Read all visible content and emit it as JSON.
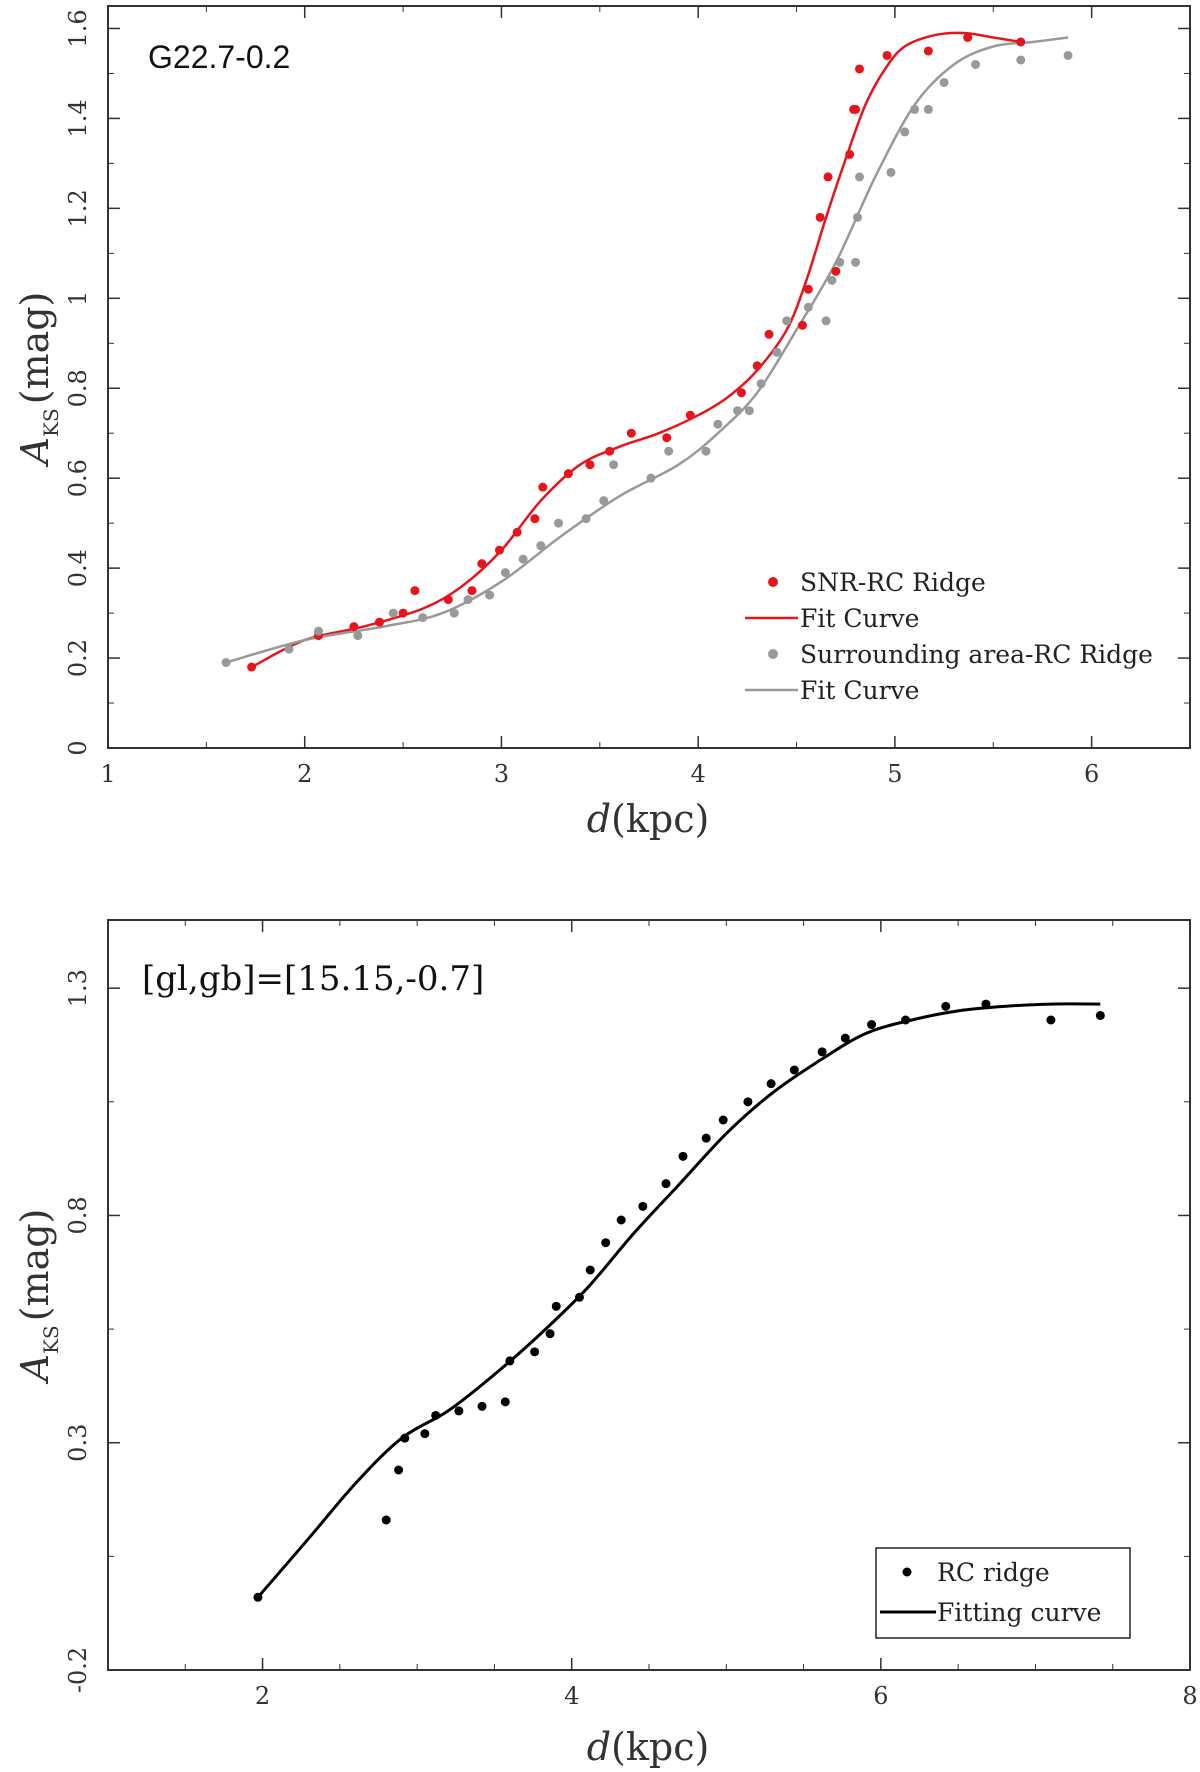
{
  "chart_data": [
    {
      "type": "scatter",
      "title": "G22.7-0.2",
      "xlabel": "d(kpc)",
      "ylabel": "A_KS (mag)",
      "ylabel_main": "A",
      "ylabel_sub": "KS",
      "ylabel_unit": "(mag)",
      "xlabel_var": "d",
      "xlabel_unit": "(kpc)",
      "xlim": [
        1,
        6.5
      ],
      "ylim": [
        0,
        1.65
      ],
      "xticks": [
        1,
        2,
        3,
        4,
        5,
        6
      ],
      "yticks": [
        0,
        0.2,
        0.4,
        0.6,
        0.8,
        1,
        1.2,
        1.4,
        1.6
      ],
      "xtick_labels": [
        "1",
        "2",
        "3",
        "4",
        "5",
        "6"
      ],
      "ytick_labels": [
        "0",
        "0.2",
        "0.4",
        "0.6",
        "0.8",
        "1",
        "1.2",
        "1.4",
        "1.6"
      ],
      "legend_position": "bottom-right",
      "series": [
        {
          "name": "SNR-RC Ridge",
          "kind": "points",
          "color": "#e8141c",
          "x": [
            1.73,
            2.07,
            2.25,
            2.38,
            2.5,
            2.56,
            2.73,
            2.85,
            2.9,
            2.99,
            3.08,
            3.17,
            3.21,
            3.34,
            3.45,
            3.55,
            3.66,
            3.84,
            3.96,
            4.22,
            4.3,
            4.36,
            4.53,
            4.56,
            4.62,
            4.66,
            4.7,
            4.77,
            4.79,
            4.8,
            4.82,
            4.96,
            5.17,
            5.37,
            5.64
          ],
          "y": [
            0.18,
            0.25,
            0.27,
            0.28,
            0.3,
            0.35,
            0.33,
            0.35,
            0.41,
            0.44,
            0.48,
            0.51,
            0.58,
            0.61,
            0.63,
            0.66,
            0.7,
            0.69,
            0.74,
            0.79,
            0.85,
            0.92,
            0.94,
            1.02,
            1.18,
            1.27,
            1.06,
            1.32,
            1.42,
            1.42,
            1.51,
            1.54,
            1.55,
            1.58,
            1.57
          ]
        },
        {
          "name": "Fit Curve",
          "kind": "line",
          "color": "#e8141c",
          "x": [
            1.73,
            2.0,
            2.3,
            2.6,
            2.8,
            3.0,
            3.2,
            3.4,
            3.6,
            3.8,
            4.0,
            4.15,
            4.3,
            4.45,
            4.55,
            4.65,
            4.75,
            4.85,
            4.95,
            5.05,
            5.2,
            5.35,
            5.5,
            5.64
          ],
          "y": [
            0.18,
            0.24,
            0.27,
            0.31,
            0.36,
            0.44,
            0.55,
            0.63,
            0.67,
            0.7,
            0.74,
            0.78,
            0.84,
            0.93,
            1.04,
            1.18,
            1.31,
            1.43,
            1.51,
            1.56,
            1.585,
            1.59,
            1.58,
            1.57
          ]
        },
        {
          "name": "Surrounding area-RC Ridge",
          "kind": "points",
          "color": "#999999",
          "x": [
            1.6,
            1.92,
            2.07,
            2.27,
            2.45,
            2.6,
            2.76,
            2.83,
            2.94,
            3.02,
            3.11,
            3.2,
            3.29,
            3.43,
            3.52,
            3.57,
            3.76,
            3.85,
            4.04,
            4.1,
            4.2,
            4.26,
            4.32,
            4.4,
            4.45,
            4.56,
            4.65,
            4.68,
            4.72,
            4.8,
            4.81,
            4.82,
            4.98,
            5.05,
            5.1,
            5.17,
            5.25,
            5.41,
            5.64,
            5.88
          ],
          "y": [
            0.19,
            0.22,
            0.26,
            0.25,
            0.3,
            0.29,
            0.3,
            0.33,
            0.34,
            0.39,
            0.42,
            0.45,
            0.5,
            0.51,
            0.55,
            0.63,
            0.6,
            0.66,
            0.66,
            0.72,
            0.75,
            0.75,
            0.81,
            0.88,
            0.95,
            0.98,
            0.95,
            1.04,
            1.08,
            1.08,
            1.18,
            1.27,
            1.28,
            1.37,
            1.42,
            1.42,
            1.48,
            1.52,
            1.53,
            1.54
          ]
        },
        {
          "name": "Fit Curve",
          "kind": "line",
          "color": "#999999",
          "x": [
            1.6,
            2.0,
            2.4,
            2.7,
            3.0,
            3.3,
            3.6,
            3.9,
            4.1,
            4.3,
            4.5,
            4.7,
            4.9,
            5.1,
            5.3,
            5.5,
            5.7,
            5.88
          ],
          "y": [
            0.19,
            0.24,
            0.27,
            0.3,
            0.37,
            0.47,
            0.56,
            0.63,
            0.7,
            0.79,
            0.93,
            1.08,
            1.27,
            1.43,
            1.52,
            1.56,
            1.57,
            1.58
          ]
        }
      ]
    },
    {
      "type": "scatter",
      "title": "[gl,gb]=[15.15,-0.7]",
      "xlabel": "d(kpc)",
      "ylabel": "A_KS (mag)",
      "ylabel_main": "A",
      "ylabel_sub": "KS",
      "ylabel_unit": "(mag)",
      "xlabel_var": "d",
      "xlabel_unit": "(kpc)",
      "xlim": [
        1,
        8
      ],
      "ylim": [
        -0.2,
        1.45
      ],
      "xticks": [
        2,
        4,
        6,
        8
      ],
      "yticks": [
        -0.2,
        0.3,
        0.8,
        1.3
      ],
      "xtick_labels": [
        "2",
        "4",
        "6",
        "8"
      ],
      "ytick_labels": [
        "-0.2",
        "0.3",
        "0.8",
        "1.3"
      ],
      "legend_position": "bottom-right",
      "series": [
        {
          "name": "RC ridge",
          "kind": "points",
          "color": "#000000",
          "x": [
            1.97,
            2.8,
            2.88,
            2.92,
            3.05,
            3.12,
            3.27,
            3.42,
            3.57,
            3.6,
            3.76,
            3.86,
            3.9,
            4.05,
            4.12,
            4.22,
            4.32,
            4.46,
            4.61,
            4.72,
            4.87,
            4.98,
            5.14,
            5.29,
            5.44,
            5.62,
            5.77,
            5.94,
            6.16,
            6.42,
            6.68,
            7.1,
            7.42
          ],
          "y": [
            -0.04,
            0.13,
            0.24,
            0.31,
            0.32,
            0.36,
            0.37,
            0.38,
            0.39,
            0.48,
            0.5,
            0.54,
            0.6,
            0.62,
            0.68,
            0.74,
            0.79,
            0.82,
            0.87,
            0.93,
            0.97,
            1.01,
            1.05,
            1.09,
            1.12,
            1.16,
            1.19,
            1.22,
            1.23,
            1.26,
            1.265,
            1.23,
            1.24
          ]
        },
        {
          "name": "Fitting curve",
          "kind": "line",
          "color": "#000000",
          "x": [
            1.97,
            2.3,
            2.6,
            2.9,
            3.2,
            3.5,
            3.8,
            4.1,
            4.4,
            4.7,
            5.0,
            5.3,
            5.6,
            5.9,
            6.2,
            6.5,
            6.8,
            7.1,
            7.42
          ],
          "y": [
            -0.04,
            0.09,
            0.21,
            0.31,
            0.37,
            0.45,
            0.54,
            0.64,
            0.76,
            0.87,
            0.98,
            1.07,
            1.14,
            1.2,
            1.23,
            1.25,
            1.26,
            1.265,
            1.265
          ]
        }
      ]
    }
  ]
}
